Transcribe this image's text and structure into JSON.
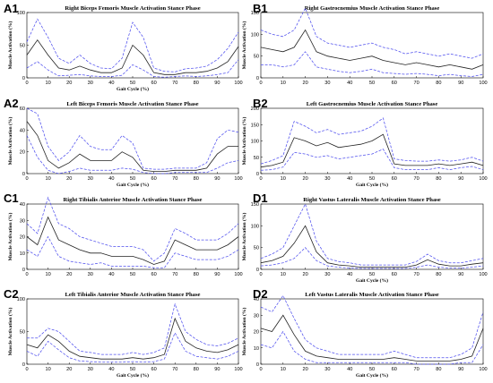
{
  "chart_data": [
    {
      "panel": "A1",
      "type": "line",
      "title": "Right Biceps Femoris Muscle Activation Stance Phase",
      "xlabel": "Gait Cycle (%)",
      "ylabel": "Muscle Activation (%)",
      "xlim": [
        0,
        100
      ],
      "ylim": [
        0,
        100
      ],
      "xticks": [
        0,
        10,
        20,
        30,
        40,
        50,
        60,
        70,
        80,
        90,
        100
      ],
      "yticks": [
        0,
        50,
        100
      ],
      "grid": false,
      "x": [
        0,
        5,
        10,
        15,
        20,
        25,
        30,
        35,
        40,
        45,
        50,
        55,
        60,
        65,
        70,
        75,
        80,
        85,
        90,
        95,
        100
      ],
      "series": [
        {
          "values": [
            35,
            58,
            35,
            15,
            12,
            18,
            12,
            8,
            8,
            15,
            50,
            35,
            8,
            5,
            5,
            8,
            8,
            10,
            15,
            25,
            48
          ]
        },
        {
          "values": [
            55,
            90,
            62,
            30,
            22,
            35,
            22,
            15,
            14,
            30,
            85,
            62,
            15,
            10,
            9,
            14,
            15,
            18,
            28,
            45,
            70
          ]
        },
        {
          "values": [
            15,
            25,
            12,
            3,
            4,
            5,
            3,
            2,
            2,
            4,
            20,
            12,
            2,
            1,
            2,
            3,
            2,
            3,
            5,
            8,
            28
          ]
        }
      ]
    },
    {
      "panel": "B1",
      "type": "line",
      "title": "Right Gastrocnemius Muscle Activation Stance Phase",
      "xlabel": "",
      "ylabel": "Muscle Activation (%)",
      "xlim": [
        0,
        100
      ],
      "ylim": [
        0,
        150
      ],
      "xticks": [
        0,
        10,
        20,
        30,
        40,
        50,
        60,
        70,
        80,
        90,
        100
      ],
      "yticks": [
        0,
        50,
        100,
        150
      ],
      "grid": false,
      "x": [
        0,
        5,
        10,
        15,
        20,
        25,
        30,
        35,
        40,
        45,
        50,
        55,
        60,
        65,
        70,
        75,
        80,
        85,
        90,
        95,
        100
      ],
      "series": [
        {
          "values": [
            70,
            65,
            60,
            70,
            110,
            60,
            50,
            45,
            40,
            45,
            50,
            40,
            35,
            30,
            35,
            30,
            25,
            30,
            25,
            20,
            30
          ]
        },
        {
          "values": [
            110,
            100,
            95,
            110,
            160,
            95,
            80,
            75,
            70,
            75,
            80,
            70,
            65,
            55,
            60,
            55,
            50,
            55,
            50,
            45,
            55
          ]
        },
        {
          "values": [
            30,
            30,
            25,
            30,
            60,
            25,
            20,
            15,
            12,
            15,
            20,
            12,
            10,
            8,
            10,
            8,
            5,
            8,
            5,
            3,
            8
          ]
        }
      ]
    },
    {
      "panel": "A2",
      "type": "line",
      "title": "Left Biceps Femoris Muscle Activation Stance Phase",
      "xlabel": "Gait Cycle (%)",
      "ylabel": "Muscle Activation (%)",
      "xlim": [
        0,
        100
      ],
      "ylim": [
        0,
        60
      ],
      "xticks": [
        0,
        10,
        20,
        30,
        40,
        50,
        60,
        70,
        80,
        90,
        100
      ],
      "yticks": [
        0,
        20,
        40,
        60
      ],
      "grid": false,
      "x": [
        0,
        5,
        10,
        15,
        20,
        25,
        30,
        35,
        40,
        45,
        50,
        55,
        60,
        65,
        70,
        75,
        80,
        85,
        90,
        95,
        100
      ],
      "series": [
        {
          "values": [
            48,
            35,
            12,
            5,
            10,
            18,
            12,
            12,
            12,
            20,
            15,
            3,
            2,
            2,
            3,
            3,
            3,
            5,
            18,
            25,
            25
          ]
        },
        {
          "values": [
            60,
            55,
            25,
            12,
            20,
            35,
            25,
            22,
            22,
            35,
            28,
            5,
            4,
            4,
            5,
            5,
            5,
            10,
            32,
            40,
            38
          ]
        },
        {
          "values": [
            35,
            15,
            3,
            0,
            2,
            5,
            3,
            3,
            3,
            5,
            4,
            1,
            0,
            0,
            1,
            1,
            1,
            1,
            5,
            10,
            12
          ]
        }
      ]
    },
    {
      "panel": "B2",
      "type": "line",
      "title": "Left Gastrocnemius Muscle Activation Stance Phase",
      "xlabel": "Gait Cycle (%)",
      "ylabel": "Muscle Activation (%)",
      "xlim": [
        0,
        100
      ],
      "ylim": [
        0,
        200
      ],
      "xticks": [
        0,
        10,
        20,
        30,
        40,
        50,
        60,
        70,
        80,
        90,
        100
      ],
      "yticks": [
        0,
        50,
        100,
        150,
        200
      ],
      "grid": false,
      "x": [
        0,
        5,
        10,
        15,
        20,
        25,
        30,
        35,
        40,
        45,
        50,
        55,
        60,
        65,
        70,
        75,
        80,
        85,
        90,
        95,
        100
      ],
      "series": [
        {
          "values": [
            20,
            25,
            35,
            110,
            100,
            85,
            95,
            80,
            85,
            90,
            100,
            120,
            30,
            25,
            25,
            25,
            30,
            25,
            30,
            35,
            25
          ]
        },
        {
          "values": [
            30,
            40,
            55,
            160,
            145,
            125,
            135,
            120,
            125,
            130,
            145,
            170,
            45,
            40,
            38,
            38,
            42,
            38,
            42,
            50,
            38
          ]
        },
        {
          "values": [
            10,
            12,
            20,
            65,
            60,
            50,
            55,
            45,
            50,
            55,
            60,
            75,
            18,
            12,
            12,
            12,
            18,
            12,
            18,
            22,
            12
          ]
        }
      ]
    },
    {
      "panel": "C1",
      "type": "line",
      "title": "Right Tibialis Anterior Muscle Activation Stance Phase",
      "xlabel": "",
      "ylabel": "Muscle Activation (%)",
      "xlim": [
        0,
        100
      ],
      "ylim": [
        0,
        40
      ],
      "xticks": [
        0,
        10,
        20,
        30,
        40,
        50,
        60,
        70,
        80,
        90,
        100
      ],
      "yticks": [
        0,
        10,
        20,
        30,
        40
      ],
      "grid": false,
      "x": [
        0,
        5,
        10,
        15,
        20,
        25,
        30,
        35,
        40,
        45,
        50,
        55,
        60,
        65,
        70,
        75,
        80,
        85,
        90,
        95,
        100
      ],
      "series": [
        {
          "values": [
            20,
            15,
            32,
            18,
            15,
            12,
            10,
            10,
            8,
            8,
            8,
            6,
            3,
            5,
            18,
            15,
            12,
            12,
            12,
            15,
            20
          ]
        },
        {
          "values": [
            28,
            22,
            44,
            28,
            25,
            20,
            18,
            16,
            14,
            14,
            14,
            12,
            5,
            10,
            25,
            22,
            18,
            18,
            18,
            22,
            28
          ]
        },
        {
          "values": [
            12,
            8,
            20,
            8,
            5,
            4,
            3,
            4,
            2,
            2,
            2,
            2,
            1,
            1,
            10,
            8,
            6,
            6,
            6,
            8,
            12
          ]
        }
      ]
    },
    {
      "panel": "D1",
      "type": "line",
      "title": "Right Vastus Lateralis Muscle Activation Stance Phase",
      "xlabel": "Gait Cycle (%)",
      "ylabel": "Muscle Activation (%)",
      "xlim": [
        0,
        100
      ],
      "ylim": [
        0,
        150
      ],
      "xticks": [
        0,
        10,
        20,
        30,
        40,
        50,
        60,
        70,
        80,
        90,
        100
      ],
      "yticks": [
        0,
        50,
        100,
        150
      ],
      "grid": false,
      "x": [
        0,
        5,
        10,
        15,
        20,
        25,
        30,
        35,
        40,
        45,
        50,
        55,
        60,
        65,
        70,
        75,
        80,
        85,
        90,
        95,
        100
      ],
      "series": [
        {
          "values": [
            15,
            20,
            30,
            60,
            100,
            40,
            15,
            10,
            8,
            5,
            5,
            5,
            5,
            5,
            10,
            22,
            12,
            8,
            8,
            12,
            15
          ]
        },
        {
          "values": [
            25,
            35,
            50,
            100,
            150,
            65,
            25,
            18,
            15,
            10,
            10,
            10,
            10,
            10,
            18,
            35,
            20,
            15,
            15,
            20,
            25
          ]
        },
        {
          "values": [
            8,
            10,
            15,
            25,
            50,
            20,
            8,
            5,
            3,
            2,
            2,
            2,
            2,
            2,
            5,
            10,
            5,
            3,
            3,
            5,
            8
          ]
        }
      ]
    },
    {
      "panel": "C2",
      "type": "line",
      "title": "Left Tibialis Anterior Muscle Activation Stance Phase",
      "xlabel": "Gait Cycle (%)",
      "ylabel": "Muscle Activation (%)",
      "xlim": [
        0,
        100
      ],
      "ylim": [
        0,
        100
      ],
      "xticks": [
        0,
        10,
        20,
        30,
        40,
        50,
        60,
        70,
        80,
        90,
        100
      ],
      "yticks": [
        0,
        50,
        100
      ],
      "grid": false,
      "x": [
        0,
        5,
        10,
        15,
        20,
        25,
        30,
        35,
        40,
        45,
        50,
        55,
        60,
        65,
        70,
        75,
        80,
        85,
        90,
        95,
        100
      ],
      "series": [
        {
          "values": [
            30,
            25,
            45,
            35,
            20,
            12,
            10,
            8,
            8,
            8,
            10,
            8,
            10,
            15,
            70,
            35,
            25,
            20,
            18,
            22,
            30
          ]
        },
        {
          "values": [
            40,
            40,
            55,
            50,
            35,
            20,
            18,
            15,
            15,
            15,
            18,
            15,
            18,
            25,
            92,
            50,
            38,
            30,
            28,
            32,
            40
          ]
        },
        {
          "values": [
            20,
            12,
            35,
            22,
            10,
            5,
            4,
            3,
            3,
            3,
            4,
            3,
            4,
            8,
            48,
            20,
            12,
            10,
            8,
            12,
            20
          ]
        }
      ]
    },
    {
      "panel": "D2",
      "type": "line",
      "title": "Left Vastus Lateralis Muscle Activation Stance Phase",
      "xlabel": "Gait Cycle (%)",
      "ylabel": "Muscle Activation (%)",
      "xlim": [
        0,
        100
      ],
      "ylim": [
        0,
        40
      ],
      "xticks": [
        0,
        10,
        20,
        30,
        40,
        50,
        60,
        70,
        80,
        90,
        100
      ],
      "yticks": [
        0,
        10,
        20,
        30,
        40
      ],
      "grid": false,
      "x": [
        0,
        5,
        10,
        15,
        20,
        25,
        30,
        35,
        40,
        45,
        50,
        55,
        60,
        65,
        70,
        75,
        80,
        85,
        90,
        95,
        100
      ],
      "series": [
        {
          "values": [
            22,
            20,
            30,
            18,
            8,
            5,
            4,
            3,
            3,
            3,
            3,
            3,
            4,
            3,
            2,
            2,
            2,
            2,
            3,
            5,
            22
          ]
        },
        {
          "values": [
            35,
            32,
            42,
            28,
            15,
            10,
            8,
            6,
            6,
            6,
            6,
            6,
            8,
            6,
            4,
            4,
            4,
            4,
            6,
            10,
            32
          ]
        },
        {
          "values": [
            12,
            10,
            20,
            8,
            3,
            1,
            1,
            1,
            1,
            1,
            1,
            1,
            1,
            1,
            0,
            0,
            0,
            0,
            1,
            1,
            12
          ]
        }
      ]
    }
  ]
}
